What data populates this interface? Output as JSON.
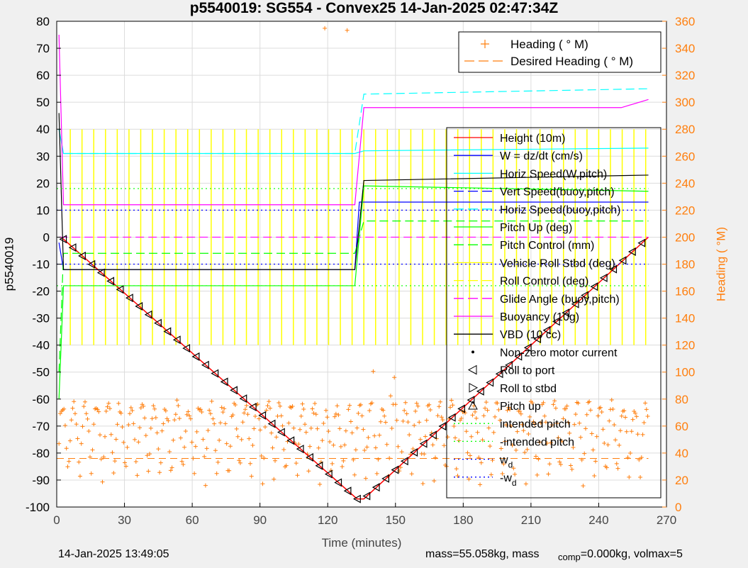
{
  "chart_data": {
    "type": "line",
    "title": "p5540019: SG554 - Convex25 14-Jan-2025 02:47:34Z",
    "xlabel": "Time (minutes)",
    "ylabel_left": "p5540019",
    "ylabel_right": "Heading ( °M)",
    "xlim": [
      0,
      270
    ],
    "ylim_left": [
      -100,
      80
    ],
    "ylim_right": [
      0,
      360
    ],
    "x_ticks": [
      "0",
      "30",
      "60",
      "90",
      "120",
      "150",
      "180",
      "210",
      "240",
      "270"
    ],
    "y_ticks_left": [
      "80",
      "70",
      "60",
      "50",
      "40",
      "30",
      "20",
      "10",
      "0",
      "-10",
      "-20",
      "-30",
      "-40",
      "-50",
      "-60",
      "-70",
      "-80",
      "-90",
      "-100"
    ],
    "y_ticks_right": [
      "360",
      "340",
      "320",
      "300",
      "280",
      "260",
      "240",
      "220",
      "200",
      "180",
      "160",
      "140",
      "120",
      "100",
      "80",
      "60",
      "40",
      "20",
      "0"
    ],
    "grid": true,
    "heading_legend": [
      {
        "name": "Heading ( ° M)",
        "color": "#ff7f0e",
        "style": "plus"
      },
      {
        "name": "Desired Heading ( ° M)",
        "color": "#ff7f0e",
        "style": "dash"
      }
    ],
    "main_legend": [
      {
        "name": "Height (10m)",
        "color": "#ff0000",
        "style": "solid"
      },
      {
        "name": "W = dz/dt (cm/s)",
        "color": "#0000ff",
        "style": "solid"
      },
      {
        "name": "Horiz Speed(W,pitch)",
        "color": "#00ffff",
        "style": "solid"
      },
      {
        "name": "Vert Speed(buoy,pitch)",
        "color": "#0000ff",
        "style": "dash"
      },
      {
        "name": "Horiz Speed(buoy,pitch)",
        "color": "#00ffff",
        "style": "dash"
      },
      {
        "name": "Pitch Up (deg)",
        "color": "#00ff00",
        "style": "solid"
      },
      {
        "name": "Pitch Control (mm)",
        "color": "#00ff00",
        "style": "dash"
      },
      {
        "name": "Vehicle Roll Stbd (deg)",
        "color": "#ffff00",
        "style": "solid"
      },
      {
        "name": "Roll Control (deg)",
        "color": "#ffff00",
        "style": "dash"
      },
      {
        "name": "Glide Angle (buoy,pitch)",
        "color": "#ff00ff",
        "style": "dash"
      },
      {
        "name": "Buoyancy (10g)",
        "color": "#ff00ff",
        "style": "solid"
      },
      {
        "name": "VBD (10 cc)",
        "color": "#000000",
        "style": "solid"
      },
      {
        "name": "Non-zero motor current",
        "color": "#000000",
        "style": "dot"
      },
      {
        "name": "Roll to port",
        "color": "#000000",
        "style": "tri-left"
      },
      {
        "name": "Roll to stbd",
        "color": "#000000",
        "style": "tri-right"
      },
      {
        "name": "Pitch up",
        "color": "#000000",
        "style": "tri-up"
      },
      {
        "name": "intended pitch",
        "color": "#00ff00",
        "style": "dot"
      },
      {
        "name": "-intended pitch",
        "color": "#00ff00",
        "style": "dot"
      },
      {
        "name": "w_d",
        "color": "#0000ff",
        "style": "dot"
      },
      {
        "name": "-w_d",
        "color": "#0000ff",
        "style": "dot"
      }
    ],
    "series": [
      {
        "name": "Height (10m)",
        "x": [
          2,
          133,
          136,
          262
        ],
        "values": [
          0,
          -97,
          -97,
          0
        ]
      },
      {
        "name": "W = dz/dt (cm/s)",
        "x": [
          1,
          3,
          10,
          132,
          134,
          140,
          262
        ],
        "values": [
          -2,
          -12,
          -12,
          -12,
          13,
          13,
          13
        ]
      },
      {
        "name": "Horiz Speed(W,pitch)",
        "x": [
          1,
          3,
          132,
          136,
          262
        ],
        "values": [
          40,
          31,
          31,
          32,
          33
        ]
      },
      {
        "name": "Horiz Speed(buoy,pitch)",
        "x": [
          1,
          3,
          132,
          136,
          262
        ],
        "values": [
          40,
          31,
          31,
          53,
          55
        ]
      },
      {
        "name": "Pitch Up (deg)",
        "x": [
          1,
          3,
          132,
          136,
          262
        ],
        "values": [
          -60,
          -18,
          -18,
          19,
          17
        ]
      },
      {
        "name": "Pitch Control (mm)",
        "x": [
          1,
          3,
          132,
          136,
          262
        ],
        "values": [
          -50,
          -6,
          -6,
          6,
          6
        ]
      },
      {
        "name": "Glide Angle (buoy,pitch)",
        "x": [
          1,
          262
        ],
        "values": [
          0,
          0
        ]
      },
      {
        "name": "Buoyancy (10g)",
        "x": [
          1,
          3,
          132,
          136,
          250,
          262
        ],
        "values": [
          75,
          12,
          12,
          48,
          48,
          51
        ]
      },
      {
        "name": "VBD (10 cc)",
        "x": [
          1,
          3,
          132,
          136,
          262
        ],
        "values": [
          46,
          -12,
          -12,
          21,
          23
        ]
      },
      {
        "name": "intended pitch",
        "x": [
          0,
          262
        ],
        "values": [
          18,
          18
        ]
      },
      {
        "name": "-intended pitch",
        "x": [
          0,
          262
        ],
        "values": [
          -18,
          -18
        ]
      },
      {
        "name": "w_d",
        "x": [
          0,
          262
        ],
        "values": [
          10,
          10
        ]
      },
      {
        "name": "-w_d",
        "x": [
          0,
          262
        ],
        "values": [
          -10,
          -10
        ]
      }
    ]
  },
  "footer": {
    "timestamp": "14-Jan-2025 13:49:05",
    "mass_text": "mass=55.058kg, mass",
    "comp_sub": "comp",
    "comp_text": "=0.000kg, volmax=5"
  },
  "colors": {
    "heading": "#ff7f0e",
    "background": "#ffffff",
    "figure": "#f0f0f0"
  }
}
